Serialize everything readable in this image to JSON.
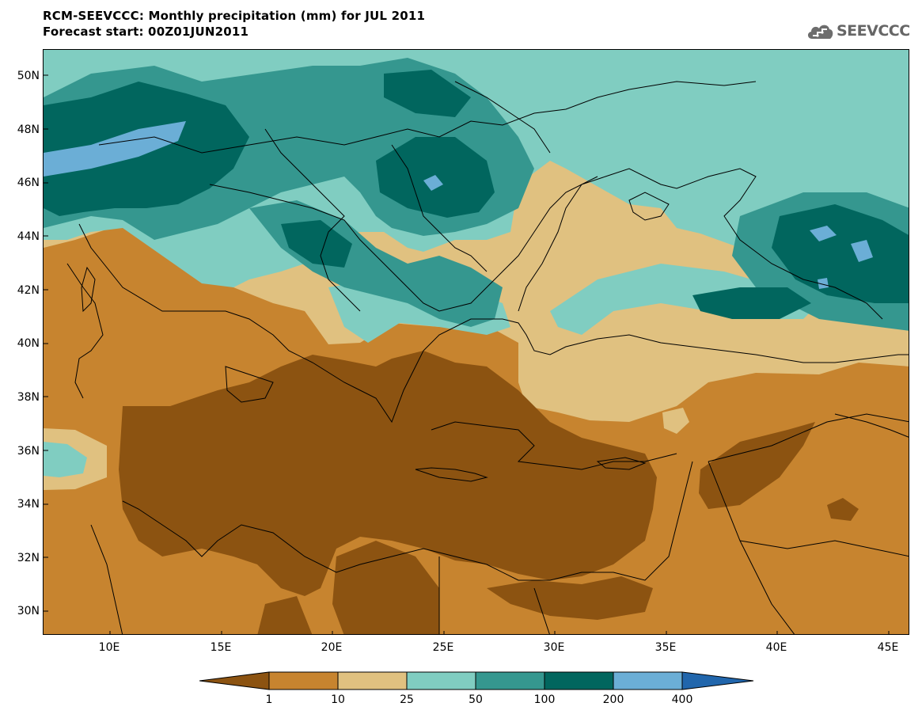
{
  "title": {
    "line1": "RCM-SEEVCCC: Monthly precipitation (mm) for JUL 2011",
    "line2": "Forecast start: 00Z01JUN2011"
  },
  "logo": {
    "text": "SEEVCCC",
    "icon": "cloud-icon"
  },
  "map": {
    "lat_labels": [
      "50N",
      "48N",
      "46N",
      "44N",
      "42N",
      "40N",
      "38N",
      "36N",
      "34N",
      "32N",
      "30N"
    ],
    "lon_labels": [
      "10E",
      "15E",
      "20E",
      "25E",
      "30E",
      "35E",
      "40E",
      "45E"
    ]
  },
  "legend": {
    "labels": [
      "1",
      "10",
      "25",
      "50",
      "100",
      "200",
      "400"
    ],
    "colors": {
      "lt1": "#8c5311",
      "c1_10": "#c7842f",
      "c10_25": "#e0c180",
      "c25_50": "#80cdc1",
      "c50_100": "#35978f",
      "c100_200": "#01665e",
      "c200_400": "#6baed6",
      "gt400": "#2166ac"
    }
  }
}
